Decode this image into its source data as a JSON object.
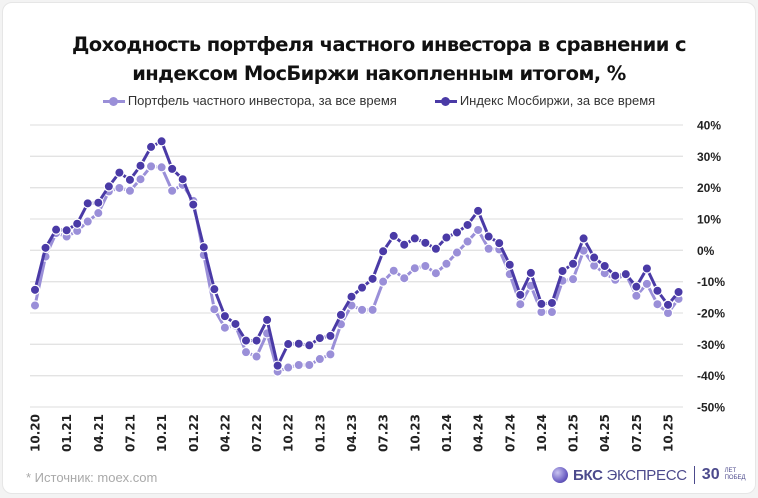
{
  "title_line1": "Доходность портфеля частного инвестора в сравнении с",
  "title_line2": "индексом МосБиржи накопленным итогом, %",
  "source": "*  Источник: moex.com",
  "logo": {
    "brand": "БКС",
    "name": "ЭКСПРЕСС",
    "anniv": "30",
    "anniv_small1": "ЛЕТ",
    "anniv_small2": "ПОБЕД"
  },
  "colors": {
    "portfolio": "#9a8fd8",
    "index": "#4a3aa6",
    "grid": "#e3e3e3"
  },
  "chart_data": {
    "type": "line",
    "title": "Доходность портфеля частного инвестора в сравнении с индексом МосБиржи накопленным итогом, %",
    "x": [
      "10.20",
      "11.20",
      "12.20",
      "01.21",
      "02.21",
      "03.21",
      "04.21",
      "05.21",
      "06.21",
      "07.21",
      "08.21",
      "09.21",
      "10.21",
      "11.21",
      "12.21",
      "01.22",
      "02.22",
      "03.22",
      "04.22",
      "05.22",
      "06.22",
      "07.22",
      "08.22",
      "09.22",
      "10.22",
      "11.22",
      "12.22",
      "01.23",
      "02.23",
      "03.23",
      "04.23",
      "05.23",
      "06.23",
      "07.23",
      "08.23",
      "09.23",
      "10.23",
      "11.23",
      "12.23",
      "01.24",
      "02.24",
      "03.24",
      "04.24",
      "05.24",
      "06.24",
      "07.24",
      "08.24",
      "09.24",
      "10.24",
      "11.24",
      "12.24",
      "01.25",
      "02.25",
      "03.25",
      "04.25",
      "05.25",
      "06.25",
      "07.25",
      "08.25",
      "09.25",
      "10.25",
      "11.25"
    ],
    "x_tick_labels": [
      "10.20",
      "01.21",
      "04.21",
      "07.21",
      "10.21",
      "01.22",
      "04.22",
      "07.22",
      "10.22",
      "01.23",
      "04.23",
      "07.23",
      "10.23",
      "01.24",
      "04.24",
      "07.24",
      "10.24",
      "01.25",
      "04.25",
      "07.25",
      "10.25"
    ],
    "y_ticks": [
      "40%",
      "30%",
      "20%",
      "10%",
      "0%",
      "-10%",
      "-20%",
      "-30%",
      "-40%",
      "-50%"
    ],
    "ylim": [
      -50,
      40
    ],
    "y_axis_position": "right",
    "grid": true,
    "legend_position": "top",
    "series": [
      {
        "name": "Портфель частного инвестора, за все время",
        "values": [
          -17.6,
          -2,
          5.5,
          4.4,
          6.2,
          9.2,
          11.9,
          18.8,
          19.9,
          19,
          22.7,
          26.8,
          26.5,
          19,
          20.9,
          15.8,
          -1.5,
          -18.8,
          -24.7,
          -24,
          -32.5,
          -33.9,
          -26.5,
          -38.7,
          -37.4,
          -36.6,
          -36.6,
          -34.7,
          -33.2,
          -23.6,
          -17.6,
          -19,
          -19,
          -10,
          -6.5,
          -8.9,
          -5.7,
          -5,
          -7.3,
          -4.3,
          -0.7,
          2.8,
          6.5,
          0.5,
          0.3,
          -7.6,
          -17.2,
          -11.3,
          -19.7,
          -19.7,
          -9.7,
          -9.2,
          -0.1,
          -4.9,
          -7.3,
          -9.4,
          -7.6,
          -14.5,
          -10.7,
          -17.2,
          -20,
          -15.5
        ]
      },
      {
        "name": "Индекс Мосбиржи, за все время",
        "values": [
          -12.6,
          0.8,
          6.6,
          6.4,
          8.5,
          15,
          15.2,
          20.4,
          24.8,
          22.5,
          27,
          33,
          34.8,
          26,
          22.7,
          14.6,
          1,
          -12.4,
          -21,
          -23.5,
          -28.8,
          -28.8,
          -22.2,
          -36.8,
          -29.9,
          -29.8,
          -30.3,
          -28,
          -27.3,
          -20.6,
          -14.8,
          -11.9,
          -9.1,
          -0.3,
          4.6,
          1.8,
          3.8,
          2.4,
          0.5,
          4.1,
          5.7,
          8.1,
          12.6,
          4.4,
          2.3,
          -4.6,
          -14.2,
          -7.2,
          -17.1,
          -16.8,
          -6.6,
          -4.3,
          3.8,
          -2.3,
          -5,
          -8.1,
          -7.6,
          -11.6,
          -5.8,
          -12.9,
          -17.4,
          -13.3
        ]
      }
    ]
  }
}
